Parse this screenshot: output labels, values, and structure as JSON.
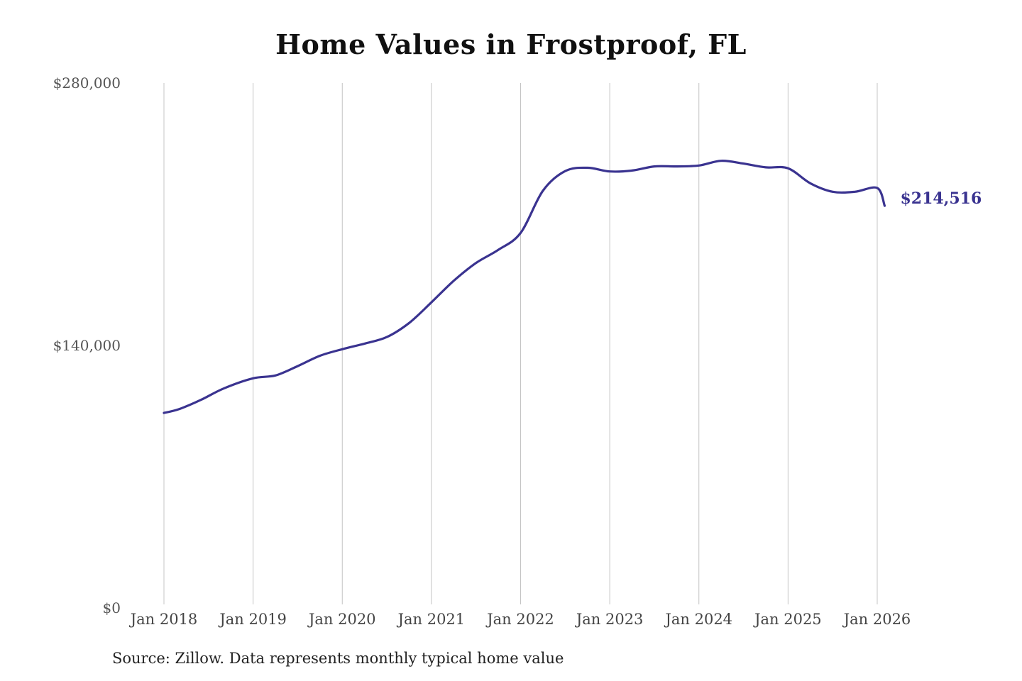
{
  "chart_data": {
    "type": "line",
    "title": "Home Values in Frostproof, FL",
    "source": "Source: Zillow. Data represents monthly typical home value",
    "xlabel": "",
    "ylabel": "",
    "ylim": [
      0,
      280000
    ],
    "y_ticks": [
      {
        "value": 0,
        "label": "$0"
      },
      {
        "value": 140000,
        "label": "$140,000"
      },
      {
        "value": 280000,
        "label": "$280,000"
      }
    ],
    "x_ticks": [
      {
        "value": "2018-01",
        "label": "Jan 2018"
      },
      {
        "value": "2019-01",
        "label": "Jan 2019"
      },
      {
        "value": "2020-01",
        "label": "Jan 2020"
      },
      {
        "value": "2021-01",
        "label": "Jan 2021"
      },
      {
        "value": "2022-01",
        "label": "Jan 2022"
      },
      {
        "value": "2023-01",
        "label": "Jan 2023"
      },
      {
        "value": "2024-01",
        "label": "Jan 2024"
      },
      {
        "value": "2025-01",
        "label": "Jan 2025"
      },
      {
        "value": "2026-01",
        "label": "Jan 2026"
      }
    ],
    "vertical_grid": true,
    "line_color": "#3a3390",
    "end_label": "$214,516",
    "series": [
      {
        "x": [
          "2018-01",
          "2018-03",
          "2018-06",
          "2018-09",
          "2019-01",
          "2019-04",
          "2019-07",
          "2019-10",
          "2020-01",
          "2020-04",
          "2020-07",
          "2020-10",
          "2021-01",
          "2021-04",
          "2021-07",
          "2021-10",
          "2022-01",
          "2022-04",
          "2022-07",
          "2022-10",
          "2023-01",
          "2023-04",
          "2023-07",
          "2023-10",
          "2024-01",
          "2024-04",
          "2024-07",
          "2024-10",
          "2025-01",
          "2025-04",
          "2025-07",
          "2025-10",
          "2026-01",
          "2026-02"
        ],
        "values": [
          104000,
          106000,
          111000,
          117000,
          122500,
          124000,
          129000,
          134500,
          138000,
          141000,
          144500,
          152000,
          163000,
          174500,
          184000,
          191000,
          200000,
          222500,
          233000,
          234800,
          232800,
          233300,
          235500,
          235500,
          236000,
          238500,
          237000,
          235000,
          234500,
          226500,
          222000,
          222000,
          224000,
          214516
        ]
      }
    ]
  }
}
